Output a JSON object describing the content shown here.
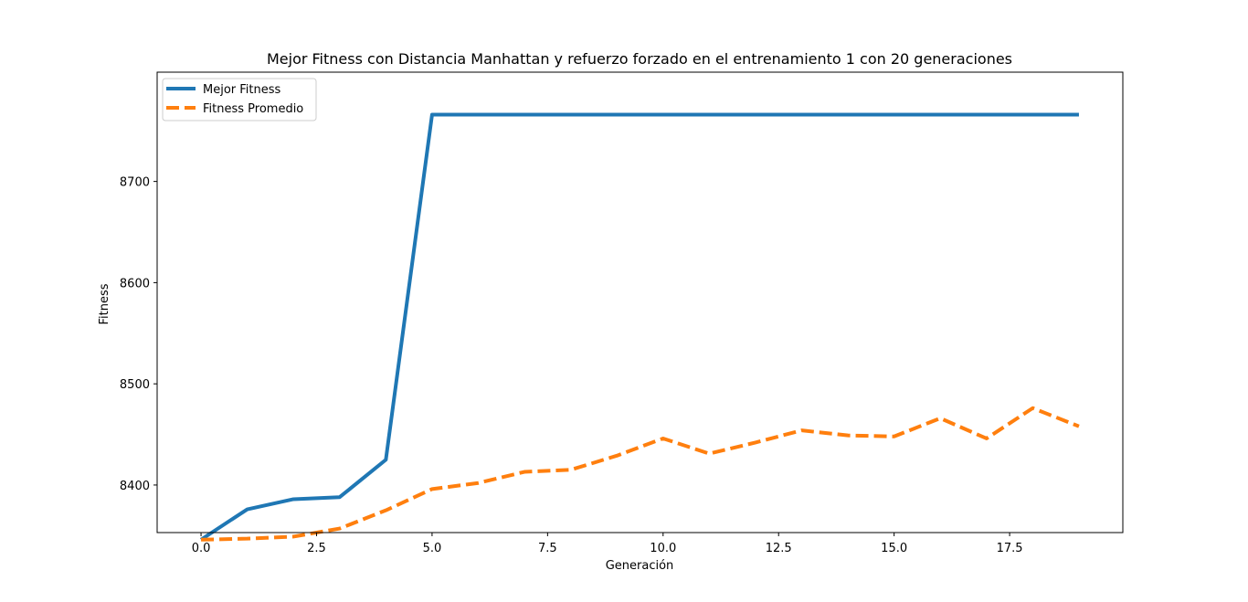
{
  "chart_data": {
    "type": "line",
    "title": "Mejor Fitness con Distancia Manhattan y refuerzo forzado en el entrenamiento 1 con 20 generaciones",
    "xlabel": "Generación",
    "ylabel": "Fitness",
    "xlim": [
      -0.95,
      19.95
    ],
    "ylim": [
      8353,
      8808
    ],
    "x": [
      0,
      1,
      2,
      3,
      4,
      5,
      6,
      7,
      8,
      9,
      10,
      11,
      12,
      13,
      14,
      15,
      16,
      17,
      18,
      19
    ],
    "x_ticks": [
      {
        "value": 0,
        "label": "0.0"
      },
      {
        "value": 2.5,
        "label": "2.5"
      },
      {
        "value": 5,
        "label": "5.0"
      },
      {
        "value": 7.5,
        "label": "7.5"
      },
      {
        "value": 10,
        "label": "10.0"
      },
      {
        "value": 12.5,
        "label": "12.5"
      },
      {
        "value": 15,
        "label": "15.0"
      },
      {
        "value": 17.5,
        "label": "17.5"
      }
    ],
    "y_ticks": [
      {
        "value": 8400,
        "label": "8400"
      },
      {
        "value": 8500,
        "label": "8500"
      },
      {
        "value": 8600,
        "label": "8600"
      },
      {
        "value": 8700,
        "label": "8700"
      }
    ],
    "grid": false,
    "legend_position": "top-left",
    "series": [
      {
        "name": "Mejor Fitness",
        "color": "#1f77b4",
        "style": "solid",
        "values": [
          8346,
          8376,
          8386,
          8388,
          8425,
          8766,
          8766,
          8766,
          8766,
          8766,
          8766,
          8766,
          8766,
          8766,
          8766,
          8766,
          8766,
          8766,
          8766,
          8766
        ]
      },
      {
        "name": "Fitness Promedio",
        "color": "#ff7f0e",
        "style": "dashed",
        "values": [
          8346,
          8347,
          8349,
          8357,
          8375,
          8396,
          8402,
          8413,
          8415,
          8429,
          8446,
          8431,
          8442,
          8454,
          8449,
          8448,
          8466,
          8446,
          8476,
          8458
        ]
      }
    ]
  }
}
